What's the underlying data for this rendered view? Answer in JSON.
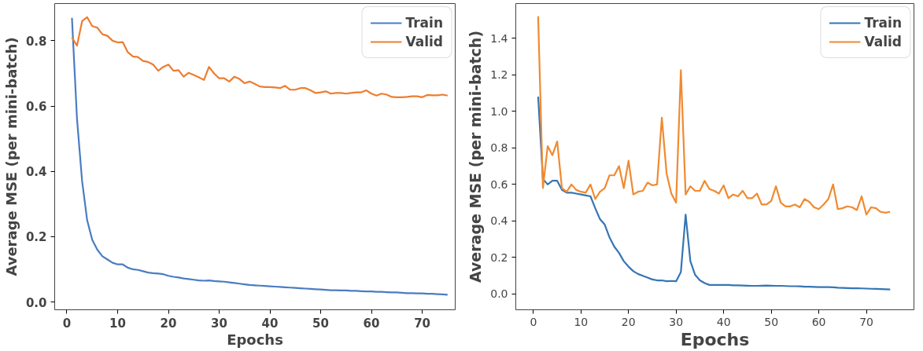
{
  "chart_data": [
    {
      "type": "line",
      "xlabel": "Epochs",
      "ylabel": "Average MSE (per mini-batch)",
      "legend": "top right",
      "grid": false,
      "x": [
        1,
        2,
        3,
        4,
        5,
        6,
        7,
        8,
        9,
        10,
        11,
        12,
        13,
        14,
        15,
        16,
        17,
        18,
        19,
        20,
        21,
        22,
        23,
        24,
        25,
        26,
        27,
        28,
        29,
        30,
        31,
        32,
        33,
        34,
        35,
        36,
        37,
        38,
        39,
        40,
        41,
        42,
        43,
        44,
        45,
        46,
        47,
        48,
        49,
        50,
        51,
        52,
        53,
        54,
        55,
        56,
        57,
        58,
        59,
        60,
        61,
        62,
        63,
        64,
        65,
        66,
        67,
        68,
        69,
        70,
        71,
        72,
        73,
        74,
        75
      ],
      "xlim": [
        -2.4,
        76.5
      ],
      "xticks": [
        0,
        10,
        20,
        30,
        40,
        50,
        60,
        70
      ],
      "ylim": [
        -0.024,
        0.914
      ],
      "yticks": [
        {
          "value": 0,
          "label": "0.0"
        },
        {
          "value": 0.2,
          "label": "0.2"
        },
        {
          "value": 0.4,
          "label": "0.4"
        },
        {
          "value": 0.6,
          "label": "0.6"
        },
        {
          "value": 0.8,
          "label": "0.8"
        }
      ],
      "series": [
        {
          "name": "Train",
          "color": "#4a7cc4",
          "values": [
            0.87,
            0.56,
            0.37,
            0.25,
            0.19,
            0.16,
            0.14,
            0.13,
            0.12,
            0.115,
            0.115,
            0.105,
            0.1,
            0.098,
            0.094,
            0.09,
            0.088,
            0.087,
            0.085,
            0.08,
            0.077,
            0.075,
            0.072,
            0.07,
            0.068,
            0.066,
            0.065,
            0.066,
            0.064,
            0.063,
            0.062,
            0.06,
            0.058,
            0.056,
            0.054,
            0.052,
            0.051,
            0.05,
            0.049,
            0.048,
            0.047,
            0.046,
            0.045,
            0.044,
            0.043,
            0.042,
            0.041,
            0.04,
            0.039,
            0.038,
            0.037,
            0.036,
            0.036,
            0.035,
            0.035,
            0.034,
            0.034,
            0.033,
            0.032,
            0.032,
            0.031,
            0.031,
            0.03,
            0.029,
            0.029,
            0.028,
            0.027,
            0.027,
            0.026,
            0.026,
            0.025,
            0.025,
            0.024,
            0.023,
            0.022
          ]
        },
        {
          "name": "Valid",
          "color": "#ed7d31",
          "values": [
            0.81,
            0.785,
            0.86,
            0.872,
            0.845,
            0.84,
            0.82,
            0.815,
            0.8,
            0.795,
            0.796,
            0.765,
            0.752,
            0.75,
            0.738,
            0.735,
            0.727,
            0.708,
            0.72,
            0.727,
            0.708,
            0.71,
            0.69,
            0.702,
            0.695,
            0.688,
            0.68,
            0.72,
            0.7,
            0.685,
            0.685,
            0.675,
            0.69,
            0.683,
            0.67,
            0.675,
            0.668,
            0.66,
            0.658,
            0.658,
            0.657,
            0.655,
            0.662,
            0.65,
            0.65,
            0.655,
            0.655,
            0.648,
            0.64,
            0.642,
            0.645,
            0.638,
            0.64,
            0.64,
            0.638,
            0.64,
            0.642,
            0.642,
            0.648,
            0.638,
            0.632,
            0.638,
            0.635,
            0.628,
            0.627,
            0.627,
            0.628,
            0.63,
            0.63,
            0.627,
            0.634,
            0.633,
            0.633,
            0.635,
            0.632
          ]
        }
      ]
    },
    {
      "type": "line",
      "xlabel": "Epochs",
      "ylabel": "Average MSE (per mini-batch)",
      "legend": "top right",
      "grid": false,
      "x": [
        1,
        2,
        3,
        4,
        5,
        6,
        7,
        8,
        9,
        10,
        11,
        12,
        13,
        14,
        15,
        16,
        17,
        18,
        19,
        20,
        21,
        22,
        23,
        24,
        25,
        26,
        27,
        28,
        29,
        30,
        31,
        32,
        33,
        34,
        35,
        36,
        37,
        38,
        39,
        40,
        41,
        42,
        43,
        44,
        45,
        46,
        47,
        48,
        49,
        50,
        51,
        52,
        53,
        54,
        55,
        56,
        57,
        58,
        59,
        60,
        61,
        62,
        63,
        64,
        65,
        66,
        67,
        68,
        69,
        70,
        71,
        72,
        73,
        74,
        75
      ],
      "xlim": [
        -3.7,
        80
      ],
      "xticks": [
        0,
        10,
        20,
        30,
        40,
        50,
        60,
        70
      ],
      "ylim": [
        -0.086,
        1.59
      ],
      "yticks": [
        {
          "value": 0,
          "label": "0.0"
        },
        {
          "value": 0.2,
          "label": "0.2"
        },
        {
          "value": 0.4,
          "label": "0.4"
        },
        {
          "value": 0.6,
          "label": "0.6"
        },
        {
          "value": 0.8,
          "label": "0.8"
        },
        {
          "value": 1.0,
          "label": "1.0"
        },
        {
          "value": 1.2,
          "label": "1.2"
        },
        {
          "value": 1.4,
          "label": "1.4"
        }
      ],
      "series": [
        {
          "name": "Train",
          "color": "#3575b5",
          "values": [
            1.08,
            0.63,
            0.6,
            0.62,
            0.62,
            0.57,
            0.555,
            0.555,
            0.55,
            0.545,
            0.54,
            0.535,
            0.47,
            0.41,
            0.38,
            0.31,
            0.26,
            0.225,
            0.18,
            0.15,
            0.125,
            0.11,
            0.1,
            0.09,
            0.08,
            0.075,
            0.075,
            0.07,
            0.072,
            0.07,
            0.12,
            0.435,
            0.18,
            0.105,
            0.075,
            0.06,
            0.05,
            0.05,
            0.05,
            0.05,
            0.05,
            0.048,
            0.048,
            0.047,
            0.046,
            0.045,
            0.045,
            0.046,
            0.047,
            0.046,
            0.045,
            0.045,
            0.044,
            0.043,
            0.043,
            0.042,
            0.04,
            0.04,
            0.039,
            0.038,
            0.038,
            0.038,
            0.037,
            0.035,
            0.034,
            0.033,
            0.032,
            0.032,
            0.031,
            0.03,
            0.029,
            0.028,
            0.027,
            0.026,
            0.025
          ]
        },
        {
          "name": "Valid",
          "color": "#f08a30",
          "values": [
            1.52,
            0.58,
            0.81,
            0.76,
            0.835,
            0.58,
            0.56,
            0.6,
            0.57,
            0.56,
            0.555,
            0.6,
            0.52,
            0.56,
            0.58,
            0.65,
            0.65,
            0.7,
            0.58,
            0.73,
            0.545,
            0.56,
            0.565,
            0.61,
            0.595,
            0.6,
            0.965,
            0.66,
            0.55,
            0.5,
            1.225,
            0.545,
            0.59,
            0.565,
            0.565,
            0.62,
            0.575,
            0.565,
            0.55,
            0.595,
            0.525,
            0.545,
            0.535,
            0.565,
            0.525,
            0.525,
            0.55,
            0.49,
            0.49,
            0.51,
            0.59,
            0.5,
            0.48,
            0.48,
            0.49,
            0.475,
            0.52,
            0.505,
            0.475,
            0.465,
            0.49,
            0.52,
            0.6,
            0.465,
            0.47,
            0.48,
            0.475,
            0.46,
            0.535,
            0.435,
            0.475,
            0.47,
            0.45,
            0.445,
            0.45
          ]
        }
      ]
    }
  ]
}
